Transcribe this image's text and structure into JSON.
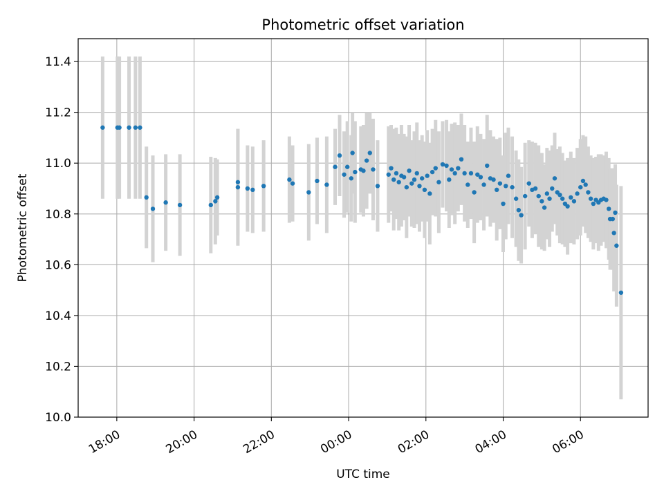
{
  "chart_data": {
    "type": "scatter",
    "title": "Photometric offset variation",
    "xlabel": "UTC time",
    "ylabel": "Photometric offset",
    "x_tick_labels": [
      "18:00",
      "20:00",
      "22:00",
      "00:00",
      "02:00",
      "04:00",
      "06:00"
    ],
    "x_tick_times": [
      "2000-01-01T18:00",
      "2000-01-01T20:00",
      "2000-01-01T22:00",
      "2000-01-02T00:00",
      "2000-01-02T02:00",
      "2000-01-02T04:00",
      "2000-01-02T06:00"
    ],
    "y_tick_labels": [
      "10.0",
      "10.2",
      "10.4",
      "10.6",
      "10.8",
      "11.0",
      "11.2",
      "11.4"
    ],
    "xlim": [
      "2000-01-01T17:00",
      "2000-01-02T07:45"
    ],
    "ylim": [
      10.0,
      11.49
    ],
    "grid": true,
    "colors": {
      "point": "#1f77b4",
      "errorbar": "#d3d3d3",
      "grid": "#b0b0b0"
    },
    "points_note": "time in HH:MM (UTC), offset, error",
    "points": [
      [
        "17:38",
        11.14,
        0.28
      ],
      [
        "18:01",
        11.14,
        0.28
      ],
      [
        "18:04",
        11.14,
        0.28
      ],
      [
        "18:19",
        11.14,
        0.28
      ],
      [
        "18:29",
        11.14,
        0.28
      ],
      [
        "18:36",
        11.14,
        0.28
      ],
      [
        "18:46",
        10.865,
        0.2
      ],
      [
        "18:56",
        10.82,
        0.21
      ],
      [
        "19:16",
        10.845,
        0.19
      ],
      [
        "19:38",
        10.835,
        0.2
      ],
      [
        "20:26",
        10.835,
        0.19
      ],
      [
        "20:33",
        10.85,
        0.17
      ],
      [
        "20:36",
        10.865,
        0.15
      ],
      [
        "21:08",
        10.905,
        0.23
      ],
      [
        "21:08",
        10.925,
        0.21
      ],
      [
        "21:23",
        10.9,
        0.17
      ],
      [
        "21:31",
        10.895,
        0.17
      ],
      [
        "21:48",
        10.91,
        0.18
      ],
      [
        "22:28",
        10.935,
        0.17
      ],
      [
        "22:33",
        10.92,
        0.15
      ],
      [
        "22:58",
        10.885,
        0.19
      ],
      [
        "23:11",
        10.93,
        0.17
      ],
      [
        "23:26",
        10.915,
        0.19
      ],
      [
        "23:39",
        10.985,
        0.15
      ],
      [
        "23:46",
        11.03,
        0.16
      ],
      [
        "23:53",
        10.955,
        0.17
      ],
      [
        "23:58",
        10.985,
        0.18
      ],
      [
        "00:04",
        10.94,
        0.17
      ],
      [
        "00:06",
        11.04,
        0.16
      ],
      [
        "00:10",
        10.965,
        0.2
      ],
      [
        "00:19",
        10.975,
        0.17
      ],
      [
        "00:23",
        10.97,
        0.18
      ],
      [
        "00:28",
        11.01,
        0.19
      ],
      [
        "00:33",
        11.04,
        0.16
      ],
      [
        "00:38",
        10.975,
        0.2
      ],
      [
        "00:45",
        10.91,
        0.18
      ],
      [
        "01:02",
        10.955,
        0.19
      ],
      [
        "01:06",
        10.98,
        0.17
      ],
      [
        "01:10",
        10.935,
        0.2
      ],
      [
        "01:14",
        10.96,
        0.18
      ],
      [
        "01:18",
        10.925,
        0.19
      ],
      [
        "01:22",
        10.95,
        0.2
      ],
      [
        "01:26",
        10.945,
        0.17
      ],
      [
        "01:30",
        10.905,
        0.2
      ],
      [
        "01:34",
        10.97,
        0.18
      ],
      [
        "01:38",
        10.92,
        0.17
      ],
      [
        "01:42",
        10.935,
        0.19
      ],
      [
        "01:46",
        10.96,
        0.2
      ],
      [
        "01:50",
        10.91,
        0.18
      ],
      [
        "01:54",
        10.94,
        0.17
      ],
      [
        "01:58",
        10.895,
        0.19
      ],
      [
        "02:02",
        10.95,
        0.18
      ],
      [
        "02:06",
        10.88,
        0.2
      ],
      [
        "02:10",
        10.965,
        0.17
      ],
      [
        "02:15",
        10.98,
        0.19
      ],
      [
        "02:20",
        10.925,
        0.2
      ],
      [
        "02:26",
        10.995,
        0.17
      ],
      [
        "02:32",
        10.99,
        0.18
      ],
      [
        "02:36",
        10.935,
        0.19
      ],
      [
        "02:40",
        10.975,
        0.18
      ],
      [
        "02:45",
        10.96,
        0.2
      ],
      [
        "02:50",
        10.98,
        0.17
      ],
      [
        "02:55",
        11.015,
        0.18
      ],
      [
        "03:00",
        10.96,
        0.19
      ],
      [
        "03:05",
        10.915,
        0.17
      ],
      [
        "03:10",
        10.96,
        0.18
      ],
      [
        "03:15",
        10.885,
        0.2
      ],
      [
        "03:20",
        10.955,
        0.19
      ],
      [
        "03:25",
        10.945,
        0.17
      ],
      [
        "03:30",
        10.915,
        0.18
      ],
      [
        "03:35",
        10.99,
        0.2
      ],
      [
        "03:40",
        10.94,
        0.19
      ],
      [
        "03:45",
        10.935,
        0.17
      ],
      [
        "03:50",
        10.895,
        0.2
      ],
      [
        "03:55",
        10.92,
        0.18
      ],
      [
        "04:00",
        10.84,
        0.19
      ],
      [
        "04:04",
        10.91,
        0.21
      ],
      [
        "04:08",
        10.95,
        0.19
      ],
      [
        "04:14",
        10.905,
        0.2
      ],
      [
        "04:20",
        10.86,
        0.19
      ],
      [
        "04:24",
        10.815,
        0.2
      ],
      [
        "04:28",
        10.795,
        0.19
      ],
      [
        "04:34",
        10.87,
        0.21
      ],
      [
        "04:40",
        10.92,
        0.17
      ],
      [
        "04:45",
        10.895,
        0.19
      ],
      [
        "04:50",
        10.9,
        0.18
      ],
      [
        "04:55",
        10.87,
        0.2
      ],
      [
        "05:00",
        10.85,
        0.19
      ],
      [
        "05:04",
        10.825,
        0.17
      ],
      [
        "05:08",
        10.88,
        0.18
      ],
      [
        "05:12",
        10.86,
        0.19
      ],
      [
        "05:16",
        10.9,
        0.17
      ],
      [
        "05:20",
        10.94,
        0.18
      ],
      [
        "05:24",
        10.885,
        0.17
      ],
      [
        "05:28",
        10.875,
        0.19
      ],
      [
        "05:32",
        10.86,
        0.18
      ],
      [
        "05:36",
        10.84,
        0.17
      ],
      [
        "05:40",
        10.83,
        0.19
      ],
      [
        "05:45",
        10.865,
        0.18
      ],
      [
        "05:50",
        10.85,
        0.17
      ],
      [
        "05:55",
        10.88,
        0.18
      ],
      [
        "06:00",
        10.905,
        0.19
      ],
      [
        "06:04",
        10.93,
        0.18
      ],
      [
        "06:08",
        10.915,
        0.19
      ],
      [
        "06:12",
        10.885,
        0.18
      ],
      [
        "06:16",
        10.86,
        0.17
      ],
      [
        "06:20",
        10.84,
        0.18
      ],
      [
        "06:24",
        10.855,
        0.17
      ],
      [
        "06:28",
        10.845,
        0.19
      ],
      [
        "06:32",
        10.855,
        0.18
      ],
      [
        "06:36",
        10.86,
        0.17
      ],
      [
        "06:40",
        10.855,
        0.19
      ],
      [
        "06:44",
        10.82,
        0.2
      ],
      [
        "06:46",
        10.78,
        0.2
      ],
      [
        "06:50",
        10.78,
        0.2
      ],
      [
        "06:52",
        10.725,
        0.23
      ],
      [
        "06:54",
        10.805,
        0.19
      ],
      [
        "06:56",
        10.675,
        0.24
      ],
      [
        "07:03",
        10.49,
        0.42
      ]
    ]
  }
}
